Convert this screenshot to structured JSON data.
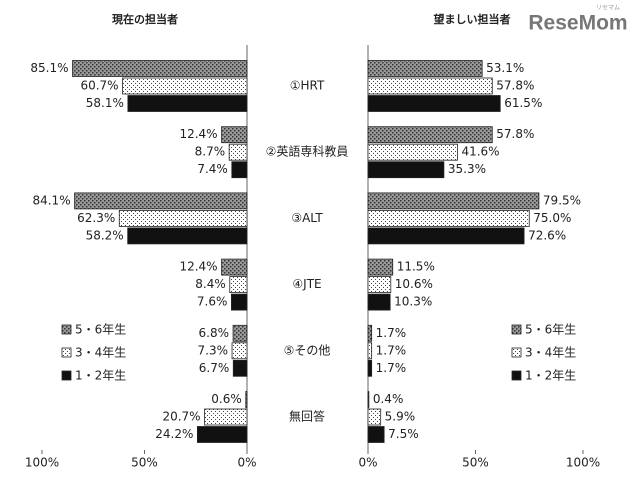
{
  "logo": "ReseMom",
  "logo_small": "リセマム",
  "chart_data": [
    {
      "type": "bar",
      "orientation": "horizontal",
      "reversed": true,
      "title": "現在の担当者",
      "categories": [
        "①HRT",
        "②英語専科教員",
        "③ALT",
        "④JTE",
        "⑤その他",
        "無回答"
      ],
      "series": [
        {
          "name": "5・6年生",
          "color": "#8c8c8c",
          "values": [
            85.1,
            12.4,
            84.1,
            12.4,
            6.8,
            0.6
          ],
          "value_labels": [
            "85.1%",
            "12.4%",
            "84.1%",
            "12.4%",
            "6.8%",
            "0.6%"
          ]
        },
        {
          "name": "3・4年生",
          "color": "#ffffff",
          "values": [
            60.7,
            8.7,
            62.3,
            8.4,
            7.3,
            20.7
          ],
          "value_labels": [
            "60.7%",
            "8.7%",
            "62.3%",
            "8.4%",
            "7.3%",
            "20.7%"
          ]
        },
        {
          "name": "1・2年生",
          "color": "#111111",
          "values": [
            58.1,
            7.4,
            58.2,
            7.6,
            6.7,
            24.2
          ],
          "value_labels": [
            "58.1%",
            "7.4%",
            "58.2%",
            "7.6%",
            "6.7%",
            "24.2%"
          ]
        }
      ],
      "xlim": [
        0,
        100
      ],
      "xticks": [
        {
          "value": 100,
          "label": "100%"
        },
        {
          "value": 50,
          "label": "50%"
        },
        {
          "value": 0,
          "label": "0%"
        }
      ],
      "legend": "lower-left"
    },
    {
      "type": "bar",
      "orientation": "horizontal",
      "reversed": false,
      "title": "望ましい担当者",
      "series": [
        {
          "name": "5・6年生",
          "color": "#8c8c8c",
          "values": [
            53.1,
            57.8,
            79.5,
            11.5,
            1.7,
            0.4
          ],
          "value_labels": [
            "53.1%",
            "57.8%",
            "79.5%",
            "11.5%",
            "1.7%",
            "0.4%"
          ]
        },
        {
          "name": "3・4年生",
          "color": "#ffffff",
          "values": [
            57.8,
            41.6,
            75.0,
            10.6,
            1.7,
            5.9
          ],
          "value_labels": [
            "57.8%",
            "41.6%",
            "75.0%",
            "10.6%",
            "1.7%",
            "5.9%"
          ]
        },
        {
          "name": "1・2年生",
          "color": "#111111",
          "values": [
            61.5,
            35.3,
            72.6,
            10.3,
            1.7,
            7.5
          ],
          "value_labels": [
            "61.5%",
            "35.3%",
            "72.6%",
            "10.3%",
            "1.7%",
            "7.5%"
          ]
        }
      ],
      "xlim": [
        0,
        100
      ],
      "xticks": [
        {
          "value": 0,
          "label": "0%"
        },
        {
          "value": 50,
          "label": "50%"
        },
        {
          "value": 100,
          "label": "100%"
        }
      ],
      "legend": "lower-right"
    }
  ]
}
